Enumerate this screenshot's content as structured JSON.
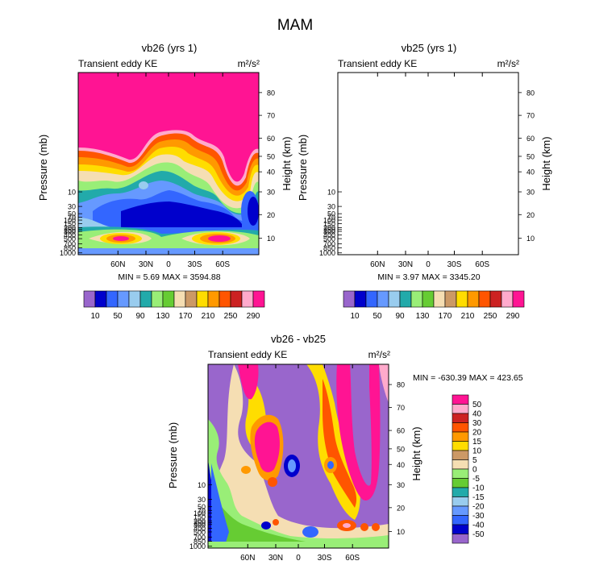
{
  "figure_title": "MAM",
  "colors": {
    "top_scale": [
      "#9966cc",
      "#0000cc",
      "#3366ff",
      "#6699ff",
      "#99ccee",
      "#22aaaa",
      "#99ee77",
      "#66cc33",
      "#f5deb3",
      "#cc9966",
      "#ffdd00",
      "#ff9900",
      "#ff5500",
      "#cc2222",
      "#ffaacc",
      "#ff1493"
    ],
    "diff_scale": [
      "#9966cc",
      "#0000cc",
      "#3366ff",
      "#6699ff",
      "#99ccee",
      "#22aaaa",
      "#66cc33",
      "#99ee77",
      "#f5deb3",
      "#cc9966",
      "#ffdd00",
      "#ff9900",
      "#ff5500",
      "#cc2222",
      "#ffaacc",
      "#ff1493"
    ]
  },
  "chart_data": [
    {
      "type": "heatmap",
      "title": "vb26 (yrs 1)",
      "subtitle_left": "Transient eddy KE",
      "units": "m²/s²",
      "ylabel": "Pressure (mb)",
      "ylabel_right": "Height (km)",
      "x_ticks": [
        "60N",
        "30N",
        "0",
        "30S",
        "60S"
      ],
      "y_ticks_pressure": [
        "10",
        "30",
        "50",
        "70",
        "100",
        "150",
        "200",
        "250",
        "300",
        "400",
        "500",
        "700",
        "850",
        "1000"
      ],
      "y_ticks_height": [
        "80",
        "70",
        "60",
        "50",
        "40",
        "30",
        "20",
        "10"
      ],
      "min_max_text": "MIN =    5.69   MAX = 3594.88",
      "colorbar_labels": [
        "10",
        "50",
        "90",
        "130",
        "170",
        "210",
        "250",
        "290"
      ]
    },
    {
      "type": "heatmap",
      "title": "vb25 (yrs 1)",
      "subtitle_left": "Transient eddy KE",
      "units": "m²/s²",
      "ylabel": "Pressure (mb)",
      "ylabel_right": "Height (km)",
      "x_ticks": [
        "60N",
        "30N",
        "0",
        "30S",
        "60S"
      ],
      "y_ticks_pressure": [
        "10",
        "30",
        "50",
        "70",
        "100",
        "150",
        "200",
        "250",
        "300",
        "400",
        "500",
        "700",
        "850",
        "1000"
      ],
      "y_ticks_height": [
        "80",
        "70",
        "60",
        "50",
        "40",
        "30",
        "20",
        "10"
      ],
      "min_max_text": "MIN =    3.97   MAX = 3345.20",
      "colorbar_labels": [
        "10",
        "50",
        "90",
        "130",
        "170",
        "210",
        "250",
        "290"
      ]
    },
    {
      "type": "heatmap",
      "title": "vb26 - vb25",
      "subtitle_left": "Transient eddy KE",
      "units": "m²/s²",
      "ylabel": "Pressure (mb)",
      "ylabel_right": "Height (km)",
      "x_ticks": [
        "60N",
        "30N",
        "0",
        "30S",
        "60S"
      ],
      "y_ticks_pressure": [
        "10",
        "30",
        "50",
        "70",
        "100",
        "150",
        "200",
        "250",
        "300",
        "400",
        "500",
        "700",
        "850",
        "1000"
      ],
      "y_ticks_height": [
        "80",
        "70",
        "60",
        "50",
        "40",
        "30",
        "20",
        "10"
      ],
      "min_max_text": "MIN = -630.39   MAX = 423.65",
      "colorbar_labels": [
        "50",
        "40",
        "30",
        "20",
        "15",
        "10",
        "5",
        "0",
        "-5",
        "-10",
        "-15",
        "-20",
        "-30",
        "-40",
        "-50"
      ]
    }
  ]
}
